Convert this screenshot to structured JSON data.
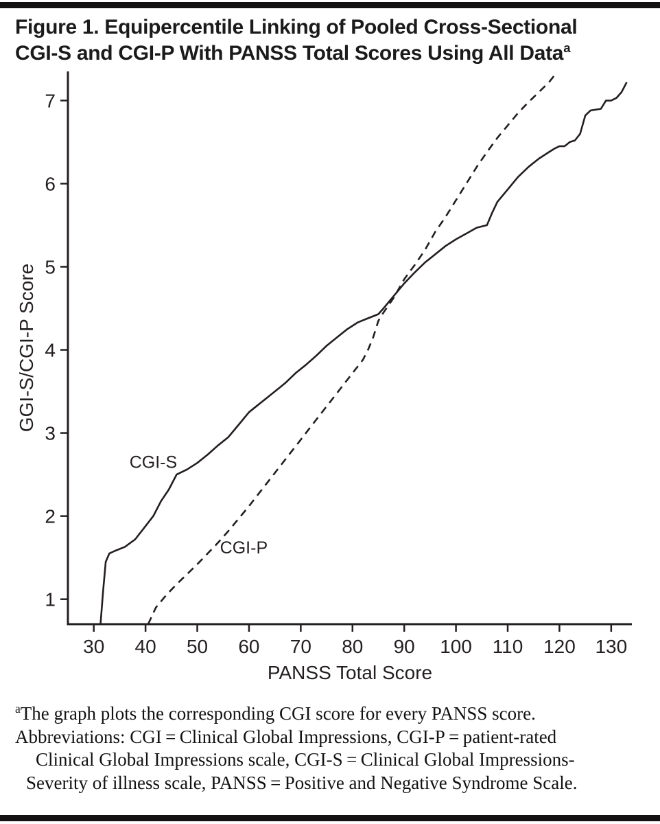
{
  "figure": {
    "title_line1": "Figure 1. Equipercentile Linking of Pooled Cross-Sectional",
    "title_line2": "CGI-S and CGI-P With PANSS Total Scores Using All Data",
    "title_superscript": "a"
  },
  "footnote": {
    "marker": "a",
    "line1": "The graph plots the corresponding CGI score for every PANSS score.",
    "line2": "Abbreviations: CGI = Clinical Global Impressions, CGI-P = patient-rated",
    "line3": "Clinical Global Impressions scale, CGI-S = Clinical Global Impressions-",
    "line4": "Severity of illness scale, PANSS = Positive and Negative Syndrome Scale."
  },
  "colors": {
    "ink": "#231f20",
    "rule": "#141112"
  },
  "chart_data": {
    "type": "line",
    "title": "",
    "xlabel": "PANSS Total Score",
    "ylabel": "GGI-S/CGI-P Score",
    "xlim": [
      25,
      134
    ],
    "ylim": [
      0.7,
      7.35
    ],
    "xticks": [
      30,
      40,
      50,
      60,
      70,
      80,
      90,
      100,
      110,
      120,
      130
    ],
    "yticks": [
      1,
      2,
      3,
      4,
      5,
      6,
      7
    ],
    "grid": false,
    "legend_position": "inline-labels",
    "series": [
      {
        "name": "CGI-S",
        "style": "solid",
        "label_pos": {
          "x": 41.5,
          "y": 2.58
        },
        "points": [
          [
            31.3,
            0.7
          ],
          [
            31.8,
            1.1
          ],
          [
            32.3,
            1.45
          ],
          [
            33,
            1.55
          ],
          [
            34,
            1.58
          ],
          [
            36,
            1.63
          ],
          [
            38,
            1.72
          ],
          [
            40,
            1.88
          ],
          [
            41.5,
            2.0
          ],
          [
            43,
            2.18
          ],
          [
            44.5,
            2.32
          ],
          [
            46,
            2.5
          ],
          [
            48,
            2.56
          ],
          [
            50,
            2.64
          ],
          [
            52,
            2.74
          ],
          [
            54,
            2.85
          ],
          [
            56,
            2.95
          ],
          [
            58,
            3.1
          ],
          [
            60,
            3.25
          ],
          [
            62,
            3.35
          ],
          [
            64,
            3.45
          ],
          [
            66,
            3.55
          ],
          [
            67,
            3.6
          ],
          [
            69,
            3.72
          ],
          [
            71,
            3.82
          ],
          [
            73,
            3.93
          ],
          [
            75,
            4.05
          ],
          [
            77,
            4.15
          ],
          [
            79,
            4.25
          ],
          [
            81,
            4.33
          ],
          [
            83,
            4.38
          ],
          [
            85,
            4.43
          ],
          [
            86,
            4.5
          ],
          [
            88,
            4.65
          ],
          [
            90,
            4.8
          ],
          [
            92,
            4.93
          ],
          [
            94,
            5.05
          ],
          [
            96,
            5.15
          ],
          [
            98,
            5.25
          ],
          [
            100,
            5.33
          ],
          [
            102,
            5.4
          ],
          [
            104,
            5.47
          ],
          [
            106,
            5.5
          ],
          [
            107,
            5.65
          ],
          [
            108,
            5.78
          ],
          [
            110,
            5.93
          ],
          [
            112,
            6.08
          ],
          [
            114,
            6.2
          ],
          [
            116,
            6.3
          ],
          [
            118,
            6.38
          ],
          [
            119,
            6.42
          ],
          [
            120,
            6.45
          ],
          [
            121,
            6.45
          ],
          [
            122,
            6.5
          ],
          [
            123,
            6.52
          ],
          [
            124,
            6.6
          ],
          [
            125,
            6.82
          ],
          [
            126,
            6.88
          ],
          [
            128,
            6.9
          ],
          [
            129,
            7.0
          ],
          [
            130,
            7.0
          ],
          [
            131,
            7.03
          ],
          [
            132,
            7.1
          ],
          [
            133,
            7.22
          ]
        ]
      },
      {
        "name": "CGI-P",
        "style": "dashed",
        "label_pos": {
          "x": 59,
          "y": 1.55
        },
        "points": [
          [
            40.5,
            0.7
          ],
          [
            42,
            0.9
          ],
          [
            44,
            1.05
          ],
          [
            46,
            1.18
          ],
          [
            48,
            1.3
          ],
          [
            50,
            1.42
          ],
          [
            52,
            1.55
          ],
          [
            54,
            1.68
          ],
          [
            56,
            1.82
          ],
          [
            58,
            1.97
          ],
          [
            60,
            2.12
          ],
          [
            62,
            2.28
          ],
          [
            64,
            2.44
          ],
          [
            66,
            2.6
          ],
          [
            68,
            2.76
          ],
          [
            70,
            2.92
          ],
          [
            72,
            3.08
          ],
          [
            74,
            3.24
          ],
          [
            76,
            3.4
          ],
          [
            78,
            3.56
          ],
          [
            80,
            3.72
          ],
          [
            82,
            3.88
          ],
          [
            83,
            4.0
          ],
          [
            84,
            4.15
          ],
          [
            85,
            4.35
          ],
          [
            86,
            4.45
          ],
          [
            88,
            4.63
          ],
          [
            90,
            4.85
          ],
          [
            92,
            5.02
          ],
          [
            94,
            5.2
          ],
          [
            96,
            5.42
          ],
          [
            98,
            5.6
          ],
          [
            100,
            5.8
          ],
          [
            102,
            6.0
          ],
          [
            104,
            6.2
          ],
          [
            106,
            6.38
          ],
          [
            108,
            6.55
          ],
          [
            110,
            6.7
          ],
          [
            112,
            6.85
          ],
          [
            114,
            6.98
          ],
          [
            116,
            7.1
          ],
          [
            118,
            7.22
          ],
          [
            119,
            7.3
          ]
        ]
      }
    ]
  }
}
